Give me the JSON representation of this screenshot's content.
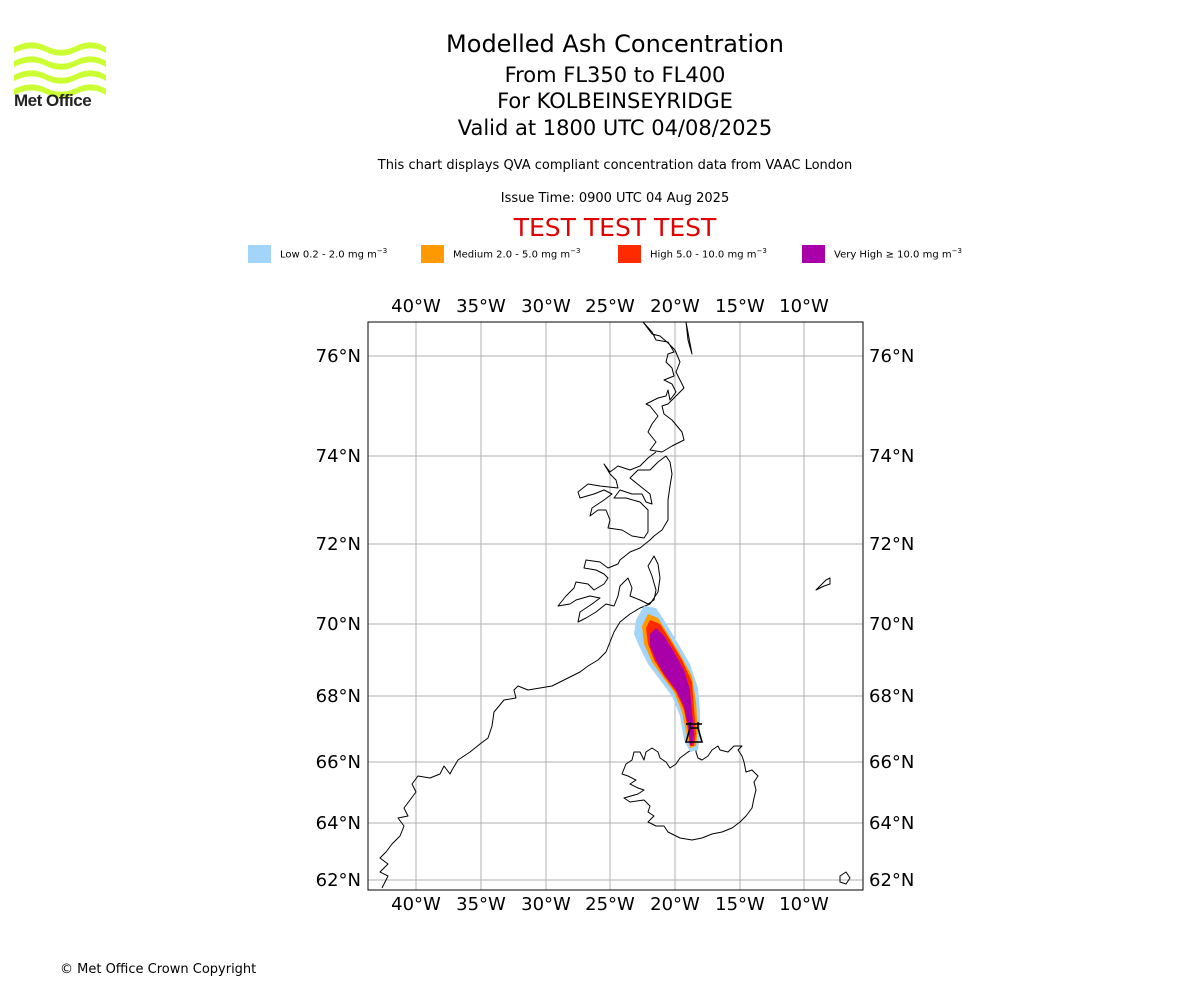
{
  "header": {
    "title": "Modelled Ash Concentration",
    "levels": "From FL350 to FL400",
    "volcano": "For KOLBEINSEYRIDGE",
    "valid": "Valid at 1800 UTC 04/08/2025",
    "description": "This chart displays QVA compliant concentration data from VAAC London",
    "issue_time": "Issue Time: 0900 UTC 04 Aug 2025",
    "test_banner": "TEST TEST TEST"
  },
  "logo": {
    "text": "Met Office",
    "color": "#ccff33"
  },
  "legend": [
    {
      "label": "Low 0.2 - 2.0 mg m",
      "sup": "−3",
      "color": "#a3d4fa"
    },
    {
      "label": "Medium 2.0 - 5.0 mg m",
      "sup": "−3",
      "color": "#ff9900"
    },
    {
      "label": "High 5.0 - 10.0 mg m",
      "sup": "−3",
      "color": "#ff2a00"
    },
    {
      "label": "Very High  ≥  10.0 mg m",
      "sup": "−3",
      "color": "#aa00aa"
    }
  ],
  "map": {
    "lon_labels": [
      "40°W",
      "35°W",
      "30°W",
      "25°W",
      "20°W",
      "15°W",
      "10°W"
    ],
    "lat_labels": [
      "76°N",
      "74°N",
      "72°N",
      "70°N",
      "68°N",
      "66°N",
      "64°N",
      "62°N"
    ],
    "grid_color": "#b0b0b0",
    "volcano_marker": "bell-icon"
  },
  "footer": {
    "copyright": "© Met Office Crown Copyright"
  }
}
